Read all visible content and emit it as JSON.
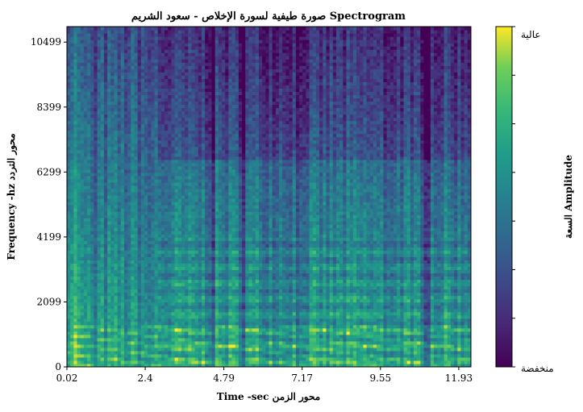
{
  "chart_data": {
    "type": "heatmap",
    "title": "صورة طيفية لسورة الإخلاص - سعود الشريم Spectrogram",
    "xlabel": "Time -sec محور الزمن",
    "ylabel": "Frequency -hz محور التردد",
    "x_ticks": [
      "0.02",
      "2.4",
      "4.79",
      "7.17",
      "9.55",
      "11.93"
    ],
    "x_tick_values": [
      0.02,
      2.4,
      4.79,
      7.17,
      9.55,
      11.93
    ],
    "y_ticks": [
      "0",
      "2099",
      "4199",
      "6299",
      "8399",
      "10499"
    ],
    "y_tick_values": [
      0,
      2099,
      4199,
      6299,
      8399,
      10499
    ],
    "xlim": [
      0.02,
      12.3
    ],
    "ylim": [
      0,
      11000
    ],
    "colormap": "viridis",
    "colorbar": {
      "label": "السعة Amplitude",
      "high_label": "عالية",
      "low_label": "منخفضة"
    },
    "grid": false
  }
}
